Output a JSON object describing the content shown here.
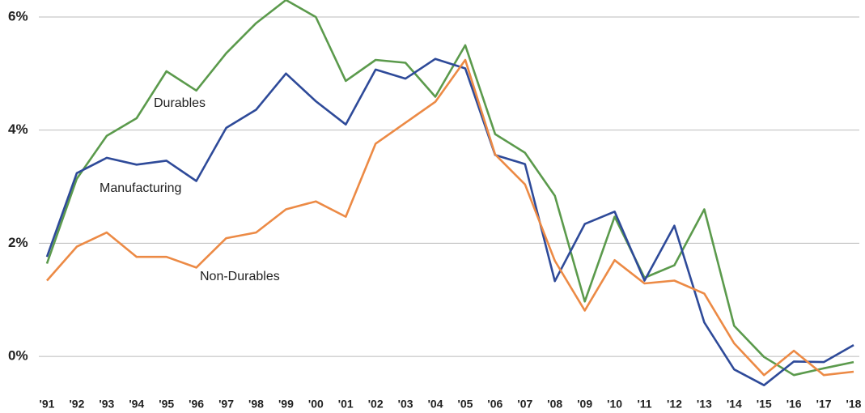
{
  "chart_data": {
    "type": "line",
    "categories": [
      "'91",
      "'92",
      "'93",
      "'94",
      "'95",
      "'96",
      "'97",
      "'98",
      "'99",
      "'00",
      "'01",
      "'02",
      "'03",
      "'04",
      "'05",
      "'06",
      "'07",
      "'08",
      "'09",
      "'10",
      "'11",
      "'12",
      "'13",
      "'14",
      "'15",
      "'16",
      "'17",
      "'18"
    ],
    "series": [
      {
        "name": "Durables",
        "color": "#5b9a4c",
        "values": [
          1.64,
          3.14,
          3.9,
          4.21,
          5.04,
          4.7,
          5.36,
          5.89,
          6.3,
          6.0,
          4.87,
          5.24,
          5.19,
          4.59,
          5.5,
          3.93,
          3.6,
          2.84,
          0.97,
          2.47,
          1.39,
          1.61,
          2.6,
          0.54,
          -0.01,
          -0.33,
          -0.21,
          -0.1
        ]
      },
      {
        "name": "Manufacturing",
        "color": "#2e4a99",
        "values": [
          1.76,
          3.24,
          3.51,
          3.39,
          3.46,
          3.1,
          4.04,
          4.36,
          5.0,
          4.51,
          4.1,
          5.07,
          4.91,
          5.26,
          5.09,
          3.56,
          3.4,
          1.33,
          2.34,
          2.56,
          1.34,
          2.31,
          0.6,
          -0.23,
          -0.51,
          -0.09,
          -0.1,
          0.2
        ]
      },
      {
        "name": "Non-Durables",
        "color": "#ec8a45",
        "values": [
          1.34,
          1.94,
          2.19,
          1.76,
          1.76,
          1.57,
          2.09,
          2.19,
          2.6,
          2.74,
          2.47,
          3.76,
          4.13,
          4.5,
          5.24,
          3.57,
          3.04,
          1.69,
          0.81,
          1.7,
          1.29,
          1.34,
          1.11,
          0.23,
          -0.33,
          0.1,
          -0.33,
          -0.27
        ]
      }
    ],
    "ylim": [
      -0.7,
      6.3
    ],
    "yticks": [
      {
        "value": 0,
        "label": "0%"
      },
      {
        "value": 2,
        "label": "2%"
      },
      {
        "value": 4,
        "label": "4%"
      },
      {
        "value": 6,
        "label": "6%"
      }
    ],
    "grid": true
  }
}
